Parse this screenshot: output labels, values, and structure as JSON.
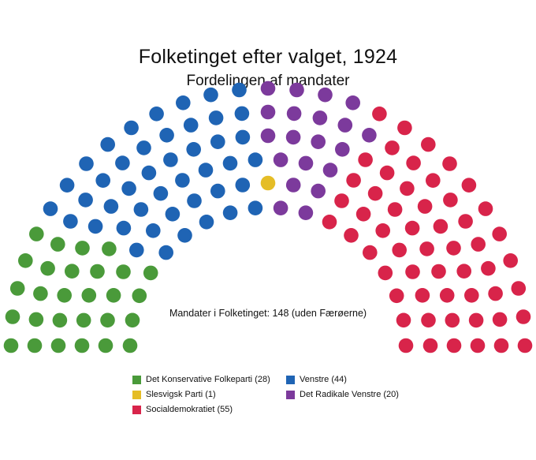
{
  "chart_data": {
    "type": "parliament",
    "title": "Folketinget efter valget, 1924",
    "subtitle": "Fordelingen af mandater",
    "annotation": "Mandater i Folketinget: 148 (uden Færøerne)",
    "total_seats": 148,
    "legend_placement": "bottom",
    "series": [
      {
        "name": "Det Konservative Folkeparti (28)",
        "seats": 28,
        "color": "#4a9a3a"
      },
      {
        "name": "Venstre (44)",
        "seats": 44,
        "color": "#1f64b4"
      },
      {
        "name": "Slesvigsk Parti (1)",
        "seats": 1,
        "color": "#e5bd26"
      },
      {
        "name": "Det Radikale Venstre (20)",
        "seats": 20,
        "color": "#7c3a9c"
      },
      {
        "name": "Socialdemokratiet (55)",
        "seats": 55,
        "color": "#d8244a"
      }
    ]
  }
}
